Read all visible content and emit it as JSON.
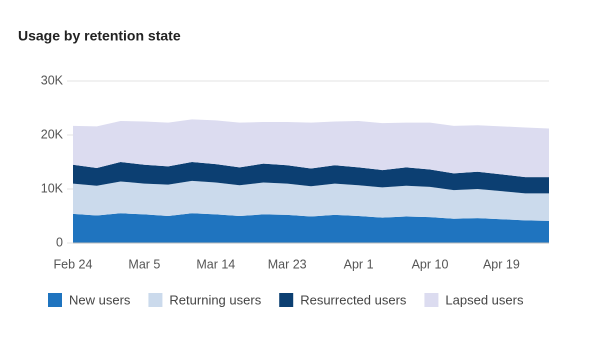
{
  "chart_data": {
    "type": "stacked-area",
    "title": "Usage by retention state",
    "categories": [
      "Feb 24",
      null,
      null,
      "Mar 5",
      null,
      null,
      "Mar 14",
      null,
      null,
      "Mar 23",
      null,
      null,
      "Apr 1",
      null,
      null,
      "Apr 10",
      null,
      null,
      "Apr 19",
      null,
      null
    ],
    "series": [
      {
        "name": "New users",
        "color": "#1f74bf",
        "values": [
          5400,
          5100,
          5500,
          5300,
          5000,
          5500,
          5300,
          5000,
          5300,
          5200,
          4900,
          5200,
          5000,
          4700,
          4900,
          4800,
          4500,
          4600,
          4400,
          4200,
          4100
        ]
      },
      {
        "name": "Returning users",
        "color": "#cbdaec",
        "values": [
          5600,
          5500,
          5900,
          5700,
          5800,
          6000,
          5900,
          5700,
          5900,
          5800,
          5600,
          5800,
          5700,
          5600,
          5700,
          5600,
          5300,
          5400,
          5200,
          5000,
          5100
        ]
      },
      {
        "name": "Resurrected users",
        "color": "#0c3f72",
        "values": [
          3500,
          3300,
          3600,
          3500,
          3400,
          3500,
          3400,
          3300,
          3500,
          3400,
          3300,
          3400,
          3300,
          3200,
          3400,
          3200,
          3100,
          3200,
          3100,
          3000,
          3000
        ]
      },
      {
        "name": "Lapsed users",
        "color": "#dcdcf0",
        "values": [
          7200,
          7700,
          7600,
          8000,
          8100,
          7900,
          8100,
          8300,
          7700,
          8000,
          8500,
          8100,
          8600,
          8700,
          8300,
          8700,
          8800,
          8600,
          8900,
          9200,
          9000
        ]
      }
    ],
    "ylim": [
      0,
      30000
    ],
    "yticks": [
      0,
      {
        "value": 10000,
        "label": "10K"
      },
      {
        "value": 20000,
        "label": "20K"
      },
      {
        "value": 30000,
        "label": "30K"
      }
    ],
    "grid": true
  }
}
